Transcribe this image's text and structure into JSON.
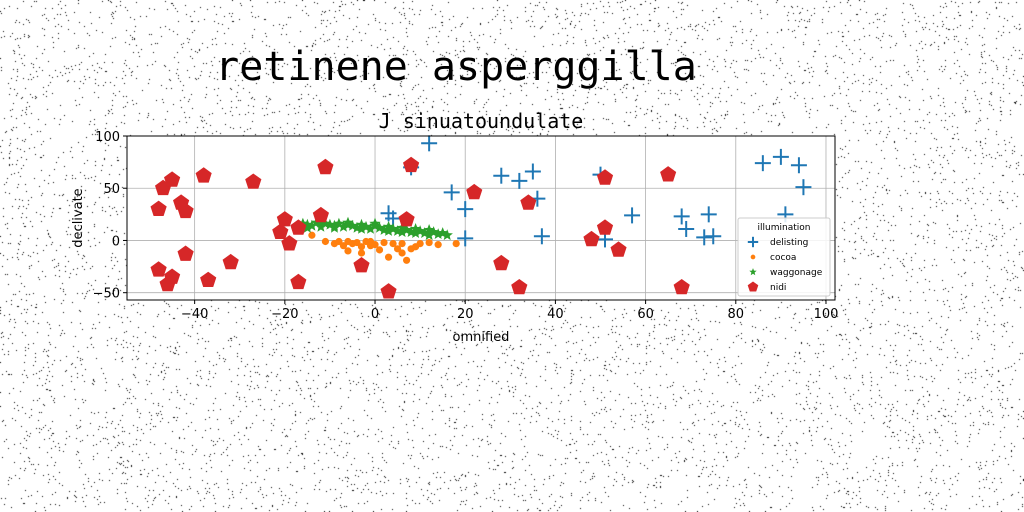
{
  "chart_data": {
    "type": "scatter",
    "suptitle": "retinene asperggilla",
    "title": "J sinuatoundulate",
    "xlabel": "omnified",
    "ylabel": "declivate",
    "xlim": [
      -55,
      102
    ],
    "ylim": [
      -57,
      100
    ],
    "xticks": [
      -40,
      -20,
      0,
      20,
      40,
      60,
      80,
      100
    ],
    "yticks": [
      -50,
      0,
      50,
      100
    ],
    "grid": true,
    "legend": {
      "title": "illumination",
      "position": "right"
    },
    "colors": {
      "delisting": "#1f77b4",
      "cocoa": "#ff7f0e",
      "waggonage": "#2ca02c",
      "nidi": "#d62728"
    },
    "series": [
      {
        "name": "delisting",
        "marker": "plus",
        "points": [
          [
            3,
            26
          ],
          [
            4,
            21
          ],
          [
            8,
            70
          ],
          [
            12,
            93
          ],
          [
            17,
            46
          ],
          [
            20,
            30
          ],
          [
            20,
            2
          ],
          [
            28,
            62
          ],
          [
            32,
            57
          ],
          [
            35,
            66
          ],
          [
            36,
            40
          ],
          [
            37,
            4
          ],
          [
            50,
            63
          ],
          [
            51,
            1
          ],
          [
            57,
            24
          ],
          [
            68,
            23
          ],
          [
            69,
            11
          ],
          [
            73,
            3
          ],
          [
            74,
            25
          ],
          [
            75,
            4
          ],
          [
            86,
            74
          ],
          [
            90,
            80
          ],
          [
            91,
            25
          ],
          [
            94,
            72
          ],
          [
            95,
            51
          ]
        ]
      },
      {
        "name": "cocoa",
        "marker": "circle",
        "points": [
          [
            -14,
            5
          ],
          [
            -11,
            -1
          ],
          [
            -9,
            -3
          ],
          [
            -8,
            -1
          ],
          [
            -7,
            -5
          ],
          [
            -6,
            -10
          ],
          [
            -6,
            -1
          ],
          [
            -5,
            -3
          ],
          [
            -4,
            -2
          ],
          [
            -3,
            -12
          ],
          [
            -3,
            -6
          ],
          [
            -2,
            -1
          ],
          [
            -1,
            -5
          ],
          [
            -1,
            -1
          ],
          [
            0,
            -4
          ],
          [
            1,
            -9
          ],
          [
            2,
            -2
          ],
          [
            3,
            -16
          ],
          [
            4,
            -3
          ],
          [
            5,
            -8
          ],
          [
            6,
            -12
          ],
          [
            6,
            -3
          ],
          [
            7,
            -19
          ],
          [
            8,
            -8
          ],
          [
            9,
            -6
          ],
          [
            10,
            -3
          ],
          [
            12,
            -2
          ],
          [
            14,
            -4
          ],
          [
            18,
            -3
          ]
        ]
      },
      {
        "name": "waggonage",
        "marker": "star",
        "points": [
          [
            -16,
            16
          ],
          [
            -15,
            15
          ],
          [
            -14,
            14
          ],
          [
            -13,
            17
          ],
          [
            -12,
            13
          ],
          [
            -11,
            16
          ],
          [
            -10,
            15
          ],
          [
            -9,
            14
          ],
          [
            -8,
            16
          ],
          [
            -7,
            13
          ],
          [
            -6,
            15
          ],
          [
            -5,
            14
          ],
          [
            -4,
            12
          ],
          [
            -3,
            15
          ],
          [
            -2,
            13
          ],
          [
            -1,
            11
          ],
          [
            0,
            14
          ],
          [
            1,
            12
          ],
          [
            2,
            10
          ],
          [
            3,
            13
          ],
          [
            4,
            11
          ],
          [
            5,
            9
          ],
          [
            6,
            12
          ],
          [
            7,
            10
          ],
          [
            8,
            8
          ],
          [
            9,
            11
          ],
          [
            10,
            9
          ],
          [
            11,
            7
          ],
          [
            12,
            10
          ],
          [
            13,
            8
          ],
          [
            14,
            6
          ],
          [
            15,
            7
          ],
          [
            16,
            5
          ],
          [
            -15,
            12
          ],
          [
            -12,
            17
          ],
          [
            -9,
            12
          ],
          [
            -6,
            17
          ],
          [
            -3,
            11
          ],
          [
            0,
            16
          ],
          [
            3,
            9
          ],
          [
            6,
            8
          ],
          [
            9,
            7
          ],
          [
            12,
            5
          ]
        ]
      },
      {
        "name": "nidi",
        "marker": "pentagon",
        "points": [
          [
            -48,
            -28
          ],
          [
            -48,
            30
          ],
          [
            -47,
            50
          ],
          [
            -46,
            -42
          ],
          [
            -45,
            -35
          ],
          [
            -45,
            58
          ],
          [
            -43,
            36
          ],
          [
            -42,
            28
          ],
          [
            -42,
            -13
          ],
          [
            -38,
            62
          ],
          [
            -37,
            -38
          ],
          [
            -32,
            -21
          ],
          [
            -27,
            56
          ],
          [
            -21,
            8
          ],
          [
            -20,
            20
          ],
          [
            -19,
            -3
          ],
          [
            -17,
            12
          ],
          [
            -17,
            -40
          ],
          [
            -12,
            24
          ],
          [
            -11,
            70
          ],
          [
            -3,
            -24
          ],
          [
            3,
            -49
          ],
          [
            7,
            20
          ],
          [
            8,
            72
          ],
          [
            22,
            46
          ],
          [
            28,
            -22
          ],
          [
            32,
            -45
          ],
          [
            34,
            36
          ],
          [
            48,
            1
          ],
          [
            51,
            12
          ],
          [
            51,
            60
          ],
          [
            54,
            -9
          ],
          [
            65,
            63
          ],
          [
            68,
            -45
          ]
        ]
      }
    ]
  }
}
